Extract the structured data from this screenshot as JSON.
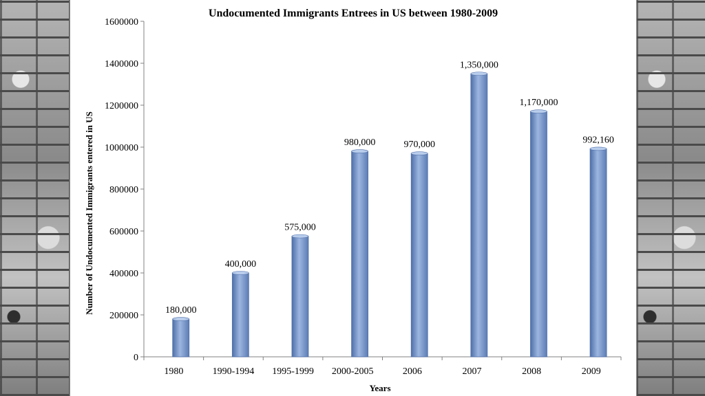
{
  "chart_data": {
    "type": "bar",
    "title": "Undocumented Immigrants Entrees in US between 1980-2009",
    "xlabel": "Years",
    "ylabel": "Number of Undocumented Immigrants entered in US",
    "ylim": [
      0,
      1600000
    ],
    "yticks": [
      "0",
      "200000",
      "400000",
      "600000",
      "800000",
      "1000000",
      "1200000",
      "1400000",
      "1600000"
    ],
    "categories": [
      "1980",
      "1990-1994",
      "1995-1999",
      "2000-2005",
      "2006",
      "2007",
      "2008",
      "2009"
    ],
    "values": [
      180000,
      400000,
      575000,
      980000,
      970000,
      1350000,
      1170000,
      992160
    ],
    "data_labels": [
      "180,000",
      "400,000",
      "575,000",
      "980,000",
      "970,000",
      "1,350,000",
      "1,170,000",
      "992,160"
    ],
    "grid": false,
    "legend": "none",
    "colors": {
      "bar": "#7f9fd2",
      "bar_dark": "#4f6fa8",
      "bar_light": "#b9cdec",
      "axis": "#808080"
    }
  }
}
